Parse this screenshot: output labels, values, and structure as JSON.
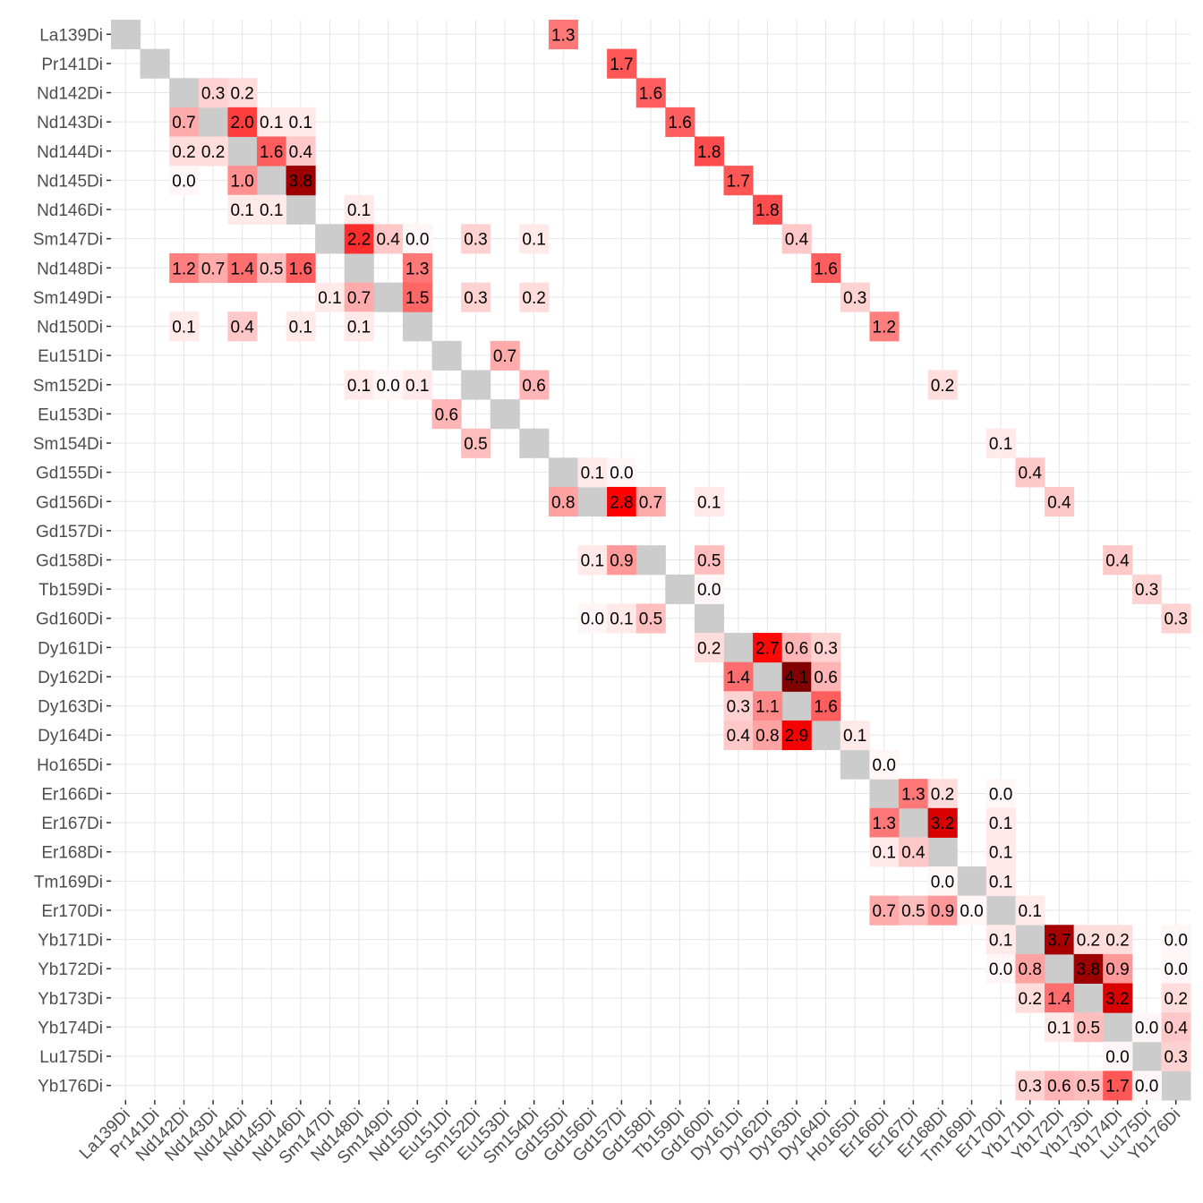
{
  "chart_data": {
    "type": "heatmap",
    "title": "",
    "xlabel": "",
    "ylabel": "",
    "grid": true,
    "channels": [
      "La139Di",
      "Pr141Di",
      "Nd142Di",
      "Nd143Di",
      "Nd144Di",
      "Nd145Di",
      "Nd146Di",
      "Sm147Di",
      "Nd148Di",
      "Sm149Di",
      "Nd150Di",
      "Eu151Di",
      "Sm152Di",
      "Eu153Di",
      "Sm154Di",
      "Gd155Di",
      "Gd156Di",
      "Gd157Di",
      "Gd158Di",
      "Tb159Di",
      "Gd160Di",
      "Dy161Di",
      "Dy162Di",
      "Dy163Di",
      "Dy164Di",
      "Ho165Di",
      "Er166Di",
      "Er167Di",
      "Er168Di",
      "Tm169Di",
      "Er170Di",
      "Yb171Di",
      "Yb172Di",
      "Yb173Di",
      "Yb174Di",
      "Lu175Di",
      "Yb176Di"
    ],
    "diagonal_color": "#cccccc",
    "color_scale": {
      "low": "#ffffff",
      "mid": "#ff0000",
      "high": "#800000",
      "min": 0,
      "mid_value": 2.8,
      "max": 4.1
    },
    "cells": [
      {
        "row": "La139Di",
        "col": "Gd155Di",
        "value": 1.3,
        "label": "1.3"
      },
      {
        "row": "Pr141Di",
        "col": "Gd157Di",
        "value": 1.7,
        "label": "1.7"
      },
      {
        "row": "Nd142Di",
        "col": "Nd143Di",
        "value": 0.3,
        "label": "0.3"
      },
      {
        "row": "Nd142Di",
        "col": "Nd144Di",
        "value": 0.2,
        "label": "0.2"
      },
      {
        "row": "Nd142Di",
        "col": "Gd158Di",
        "value": 1.6,
        "label": "1.6"
      },
      {
        "row": "Nd143Di",
        "col": "Nd142Di",
        "value": 0.7,
        "label": "0.7"
      },
      {
        "row": "Nd143Di",
        "col": "Nd144Di",
        "value": 2.0,
        "label": "2.0"
      },
      {
        "row": "Nd143Di",
        "col": "Nd145Di",
        "value": 0.1,
        "label": "0.1"
      },
      {
        "row": "Nd143Di",
        "col": "Nd146Di",
        "value": 0.1,
        "label": "0.1"
      },
      {
        "row": "Nd143Di",
        "col": "Tb159Di",
        "value": 1.6,
        "label": "1.6"
      },
      {
        "row": "Nd144Di",
        "col": "Nd142Di",
        "value": 0.2,
        "label": "0.2"
      },
      {
        "row": "Nd144Di",
        "col": "Nd143Di",
        "value": 0.2,
        "label": "0.2"
      },
      {
        "row": "Nd144Di",
        "col": "Nd145Di",
        "value": 1.6,
        "label": "1.6"
      },
      {
        "row": "Nd144Di",
        "col": "Nd146Di",
        "value": 0.4,
        "label": "0.4"
      },
      {
        "row": "Nd144Di",
        "col": "Gd160Di",
        "value": 1.8,
        "label": "1.8"
      },
      {
        "row": "Nd145Di",
        "col": "Nd142Di",
        "value": 0.0,
        "label": "0.0"
      },
      {
        "row": "Nd145Di",
        "col": "Nd144Di",
        "value": 1.0,
        "label": "1.0"
      },
      {
        "row": "Nd145Di",
        "col": "Nd146Di",
        "value": 3.8,
        "label": "3.8"
      },
      {
        "row": "Nd145Di",
        "col": "Dy161Di",
        "value": 1.7,
        "label": "1.7"
      },
      {
        "row": "Nd146Di",
        "col": "Nd144Di",
        "value": 0.1,
        "label": "0.1"
      },
      {
        "row": "Nd146Di",
        "col": "Nd145Di",
        "value": 0.1,
        "label": "0.1"
      },
      {
        "row": "Nd146Di",
        "col": "Nd148Di",
        "value": 0.1,
        "label": "0.1"
      },
      {
        "row": "Nd146Di",
        "col": "Dy162Di",
        "value": 1.8,
        "label": "1.8"
      },
      {
        "row": "Sm147Di",
        "col": "Nd148Di",
        "value": 2.2,
        "label": "2.2"
      },
      {
        "row": "Sm147Di",
        "col": "Sm149Di",
        "value": 0.4,
        "label": "0.4"
      },
      {
        "row": "Sm147Di",
        "col": "Nd150Di",
        "value": 0.0,
        "label": "0.0"
      },
      {
        "row": "Sm147Di",
        "col": "Sm152Di",
        "value": 0.3,
        "label": "0.3"
      },
      {
        "row": "Sm147Di",
        "col": "Sm154Di",
        "value": 0.1,
        "label": "0.1"
      },
      {
        "row": "Sm147Di",
        "col": "Dy163Di",
        "value": 0.4,
        "label": "0.4"
      },
      {
        "row": "Nd148Di",
        "col": "Nd142Di",
        "value": 1.2,
        "label": "1.2"
      },
      {
        "row": "Nd148Di",
        "col": "Nd143Di",
        "value": 0.7,
        "label": "0.7"
      },
      {
        "row": "Nd148Di",
        "col": "Nd144Di",
        "value": 1.4,
        "label": "1.4"
      },
      {
        "row": "Nd148Di",
        "col": "Nd145Di",
        "value": 0.5,
        "label": "0.5"
      },
      {
        "row": "Nd148Di",
        "col": "Nd146Di",
        "value": 1.6,
        "label": "1.6"
      },
      {
        "row": "Nd148Di",
        "col": "Nd150Di",
        "value": 1.3,
        "label": "1.3"
      },
      {
        "row": "Nd148Di",
        "col": "Dy164Di",
        "value": 1.6,
        "label": "1.6"
      },
      {
        "row": "Sm149Di",
        "col": "Sm147Di",
        "value": 0.1,
        "label": "0.1"
      },
      {
        "row": "Sm149Di",
        "col": "Nd148Di",
        "value": 0.7,
        "label": "0.7"
      },
      {
        "row": "Sm149Di",
        "col": "Nd150Di",
        "value": 1.5,
        "label": "1.5"
      },
      {
        "row": "Sm149Di",
        "col": "Sm152Di",
        "value": 0.3,
        "label": "0.3"
      },
      {
        "row": "Sm149Di",
        "col": "Sm154Di",
        "value": 0.2,
        "label": "0.2"
      },
      {
        "row": "Sm149Di",
        "col": "Ho165Di",
        "value": 0.3,
        "label": "0.3"
      },
      {
        "row": "Nd150Di",
        "col": "Nd142Di",
        "value": 0.1,
        "label": "0.1"
      },
      {
        "row": "Nd150Di",
        "col": "Nd144Di",
        "value": 0.4,
        "label": "0.4"
      },
      {
        "row": "Nd150Di",
        "col": "Nd146Di",
        "value": 0.1,
        "label": "0.1"
      },
      {
        "row": "Nd150Di",
        "col": "Nd148Di",
        "value": 0.1,
        "label": "0.1"
      },
      {
        "row": "Nd150Di",
        "col": "Er166Di",
        "value": 1.2,
        "label": "1.2"
      },
      {
        "row": "Eu151Di",
        "col": "Eu153Di",
        "value": 0.7,
        "label": "0.7"
      },
      {
        "row": "Sm152Di",
        "col": "Nd148Di",
        "value": 0.1,
        "label": "0.1"
      },
      {
        "row": "Sm152Di",
        "col": "Sm149Di",
        "value": 0.0,
        "label": "0.0"
      },
      {
        "row": "Sm152Di",
        "col": "Nd150Di",
        "value": 0.1,
        "label": "0.1"
      },
      {
        "row": "Sm152Di",
        "col": "Sm154Di",
        "value": 0.6,
        "label": "0.6"
      },
      {
        "row": "Sm152Di",
        "col": "Er168Di",
        "value": 0.2,
        "label": "0.2"
      },
      {
        "row": "Eu153Di",
        "col": "Eu151Di",
        "value": 0.6,
        "label": "0.6"
      },
      {
        "row": "Sm154Di",
        "col": "Sm152Di",
        "value": 0.5,
        "label": "0.5"
      },
      {
        "row": "Sm154Di",
        "col": "Er170Di",
        "value": 0.1,
        "label": "0.1"
      },
      {
        "row": "Gd155Di",
        "col": "Gd156Di",
        "value": 0.1,
        "label": "0.1"
      },
      {
        "row": "Gd155Di",
        "col": "Gd157Di",
        "value": 0.0,
        "label": "0.0"
      },
      {
        "row": "Gd155Di",
        "col": "Yb171Di",
        "value": 0.4,
        "label": "0.4"
      },
      {
        "row": "Gd156Di",
        "col": "Gd155Di",
        "value": 0.8,
        "label": "0.8"
      },
      {
        "row": "Gd156Di",
        "col": "Gd157Di",
        "value": 2.8,
        "label": "2.8"
      },
      {
        "row": "Gd156Di",
        "col": "Gd158Di",
        "value": 0.7,
        "label": "0.7"
      },
      {
        "row": "Gd156Di",
        "col": "Gd160Di",
        "value": 0.1,
        "label": "0.1"
      },
      {
        "row": "Gd156Di",
        "col": "Yb172Di",
        "value": 0.4,
        "label": "0.4"
      },
      {
        "row": "Gd158Di",
        "col": "Gd156Di",
        "value": 0.1,
        "label": "0.1"
      },
      {
        "row": "Gd158Di",
        "col": "Gd157Di",
        "value": 0.9,
        "label": "0.9"
      },
      {
        "row": "Gd158Di",
        "col": "Gd160Di",
        "value": 0.5,
        "label": "0.5"
      },
      {
        "row": "Gd158Di",
        "col": "Yb174Di",
        "value": 0.4,
        "label": "0.4"
      },
      {
        "row": "Tb159Di",
        "col": "Gd160Di",
        "value": 0.0,
        "label": "0.0"
      },
      {
        "row": "Tb159Di",
        "col": "Lu175Di",
        "value": 0.3,
        "label": "0.3"
      },
      {
        "row": "Gd160Di",
        "col": "Gd156Di",
        "value": 0.0,
        "label": "0.0"
      },
      {
        "row": "Gd160Di",
        "col": "Gd157Di",
        "value": 0.1,
        "label": "0.1"
      },
      {
        "row": "Gd160Di",
        "col": "Gd158Di",
        "value": 0.5,
        "label": "0.5"
      },
      {
        "row": "Gd160Di",
        "col": "Yb176Di",
        "value": 0.3,
        "label": "0.3"
      },
      {
        "row": "Dy161Di",
        "col": "Gd160Di",
        "value": 0.2,
        "label": "0.2"
      },
      {
        "row": "Dy161Di",
        "col": "Dy162Di",
        "value": 2.7,
        "label": "2.7"
      },
      {
        "row": "Dy161Di",
        "col": "Dy163Di",
        "value": 0.6,
        "label": "0.6"
      },
      {
        "row": "Dy161Di",
        "col": "Dy164Di",
        "value": 0.3,
        "label": "0.3"
      },
      {
        "row": "Dy162Di",
        "col": "Dy161Di",
        "value": 1.4,
        "label": "1.4"
      },
      {
        "row": "Dy162Di",
        "col": "Dy163Di",
        "value": 4.1,
        "label": "4.1"
      },
      {
        "row": "Dy162Di",
        "col": "Dy164Di",
        "value": 0.6,
        "label": "0.6"
      },
      {
        "row": "Dy163Di",
        "col": "Dy161Di",
        "value": 0.3,
        "label": "0.3"
      },
      {
        "row": "Dy163Di",
        "col": "Dy162Di",
        "value": 1.1,
        "label": "1.1"
      },
      {
        "row": "Dy163Di",
        "col": "Dy164Di",
        "value": 1.6,
        "label": "1.6"
      },
      {
        "row": "Dy164Di",
        "col": "Dy161Di",
        "value": 0.4,
        "label": "0.4"
      },
      {
        "row": "Dy164Di",
        "col": "Dy162Di",
        "value": 0.8,
        "label": "0.8"
      },
      {
        "row": "Dy164Di",
        "col": "Dy163Di",
        "value": 2.9,
        "label": "2.9"
      },
      {
        "row": "Dy164Di",
        "col": "Ho165Di",
        "value": 0.1,
        "label": "0.1"
      },
      {
        "row": "Ho165Di",
        "col": "Er166Di",
        "value": 0.0,
        "label": "0.0"
      },
      {
        "row": "Er166Di",
        "col": "Er167Di",
        "value": 1.3,
        "label": "1.3"
      },
      {
        "row": "Er166Di",
        "col": "Er168Di",
        "value": 0.2,
        "label": "0.2"
      },
      {
        "row": "Er166Di",
        "col": "Er170Di",
        "value": 0.0,
        "label": "0.0"
      },
      {
        "row": "Er167Di",
        "col": "Er166Di",
        "value": 1.3,
        "label": "1.3"
      },
      {
        "row": "Er167Di",
        "col": "Er168Di",
        "value": 3.2,
        "label": "3.2"
      },
      {
        "row": "Er167Di",
        "col": "Er170Di",
        "value": 0.1,
        "label": "0.1"
      },
      {
        "row": "Er168Di",
        "col": "Er166Di",
        "value": 0.1,
        "label": "0.1"
      },
      {
        "row": "Er168Di",
        "col": "Er167Di",
        "value": 0.4,
        "label": "0.4"
      },
      {
        "row": "Er168Di",
        "col": "Er170Di",
        "value": 0.1,
        "label": "0.1"
      },
      {
        "row": "Tm169Di",
        "col": "Er168Di",
        "value": 0.0,
        "label": "0.0"
      },
      {
        "row": "Tm169Di",
        "col": "Er170Di",
        "value": 0.1,
        "label": "0.1"
      },
      {
        "row": "Er170Di",
        "col": "Er166Di",
        "value": 0.7,
        "label": "0.7"
      },
      {
        "row": "Er170Di",
        "col": "Er167Di",
        "value": 0.5,
        "label": "0.5"
      },
      {
        "row": "Er170Di",
        "col": "Er168Di",
        "value": 0.9,
        "label": "0.9"
      },
      {
        "row": "Er170Di",
        "col": "Tm169Di",
        "value": 0.0,
        "label": "0.0"
      },
      {
        "row": "Er170Di",
        "col": "Yb171Di",
        "value": 0.1,
        "label": "0.1"
      },
      {
        "row": "Yb171Di",
        "col": "Er170Di",
        "value": 0.1,
        "label": "0.1"
      },
      {
        "row": "Yb171Di",
        "col": "Yb172Di",
        "value": 3.7,
        "label": "3.7"
      },
      {
        "row": "Yb171Di",
        "col": "Yb173Di",
        "value": 0.2,
        "label": "0.2"
      },
      {
        "row": "Yb171Di",
        "col": "Yb174Di",
        "value": 0.2,
        "label": "0.2"
      },
      {
        "row": "Yb171Di",
        "col": "Yb176Di",
        "value": 0.0,
        "label": "0.0"
      },
      {
        "row": "Yb172Di",
        "col": "Er170Di",
        "value": 0.0,
        "label": "0.0"
      },
      {
        "row": "Yb172Di",
        "col": "Yb171Di",
        "value": 0.8,
        "label": "0.8"
      },
      {
        "row": "Yb172Di",
        "col": "Yb173Di",
        "value": 3.8,
        "label": "3.8"
      },
      {
        "row": "Yb172Di",
        "col": "Yb174Di",
        "value": 0.9,
        "label": "0.9"
      },
      {
        "row": "Yb172Di",
        "col": "Yb176Di",
        "value": 0.0,
        "label": "0.0"
      },
      {
        "row": "Yb173Di",
        "col": "Yb171Di",
        "value": 0.2,
        "label": "0.2"
      },
      {
        "row": "Yb173Di",
        "col": "Yb172Di",
        "value": 1.4,
        "label": "1.4"
      },
      {
        "row": "Yb173Di",
        "col": "Yb174Di",
        "value": 3.2,
        "label": "3.2"
      },
      {
        "row": "Yb173Di",
        "col": "Yb176Di",
        "value": 0.2,
        "label": "0.2"
      },
      {
        "row": "Yb174Di",
        "col": "Yb172Di",
        "value": 0.1,
        "label": "0.1"
      },
      {
        "row": "Yb174Di",
        "col": "Yb173Di",
        "value": 0.5,
        "label": "0.5"
      },
      {
        "row": "Yb174Di",
        "col": "Lu175Di",
        "value": 0.0,
        "label": "0.0"
      },
      {
        "row": "Yb174Di",
        "col": "Yb176Di",
        "value": 0.4,
        "label": "0.4"
      },
      {
        "row": "Lu175Di",
        "col": "Yb174Di",
        "value": 0.0,
        "label": "0.0"
      },
      {
        "row": "Lu175Di",
        "col": "Yb176Di",
        "value": 0.3,
        "label": "0.3"
      },
      {
        "row": "Yb176Di",
        "col": "Yb171Di",
        "value": 0.3,
        "label": "0.3"
      },
      {
        "row": "Yb176Di",
        "col": "Yb172Di",
        "value": 0.6,
        "label": "0.6"
      },
      {
        "row": "Yb176Di",
        "col": "Yb173Di",
        "value": 0.5,
        "label": "0.5"
      },
      {
        "row": "Yb176Di",
        "col": "Yb174Di",
        "value": 1.7,
        "label": "1.7"
      },
      {
        "row": "Yb176Di",
        "col": "Lu175Di",
        "value": 0.0,
        "label": "0.0"
      }
    ]
  }
}
